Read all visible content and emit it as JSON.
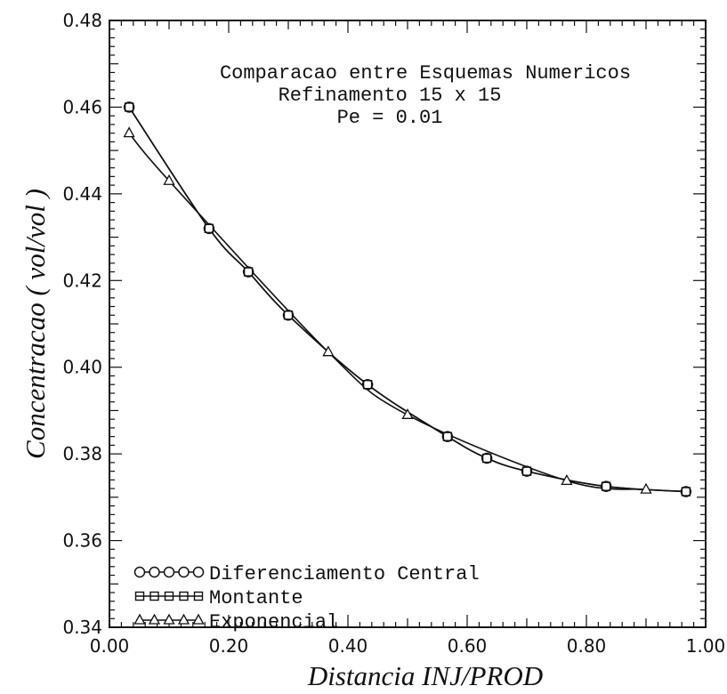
{
  "chart_data": {
    "type": "line",
    "title_lines": [
      "Comparacao entre Esquemas Numericos",
      "Refinamento 15 x 15",
      "Pe = 0.01"
    ],
    "xlabel": "Distancia INJ/PROD",
    "ylabel": "Concentracao ( vol/vol )",
    "xlim": [
      0.0,
      1.0
    ],
    "ylim": [
      0.34,
      0.48
    ],
    "x_ticks": [
      "0.00",
      "0.20",
      "0.40",
      "0.60",
      "0.80",
      "1.00"
    ],
    "y_ticks": [
      "0.34",
      "0.36",
      "0.38",
      "0.40",
      "0.42",
      "0.44",
      "0.46",
      "0.48"
    ],
    "grid": false,
    "legend_position": "bottom-left",
    "series": [
      {
        "name": "Diferenciamento Central",
        "marker": "circle",
        "x": [
          0.033,
          0.167,
          0.233,
          0.3,
          0.433,
          0.567,
          0.633,
          0.7,
          0.833,
          0.967
        ],
        "y": [
          0.46,
          0.432,
          0.422,
          0.412,
          0.396,
          0.384,
          0.379,
          0.376,
          0.3725,
          0.3713
        ]
      },
      {
        "name": "Montante",
        "marker": "square",
        "x": [
          0.033,
          0.167,
          0.233,
          0.3,
          0.433,
          0.567,
          0.633,
          0.7,
          0.833,
          0.967
        ],
        "y": [
          0.46,
          0.432,
          0.422,
          0.412,
          0.396,
          0.384,
          0.379,
          0.376,
          0.3725,
          0.3713
        ]
      },
      {
        "name": "Exponencial",
        "marker": "triangle",
        "x": [
          0.033,
          0.1,
          0.367,
          0.5,
          0.767,
          0.9
        ],
        "y": [
          0.454,
          0.443,
          0.4035,
          0.389,
          0.3738,
          0.3718
        ]
      }
    ]
  }
}
